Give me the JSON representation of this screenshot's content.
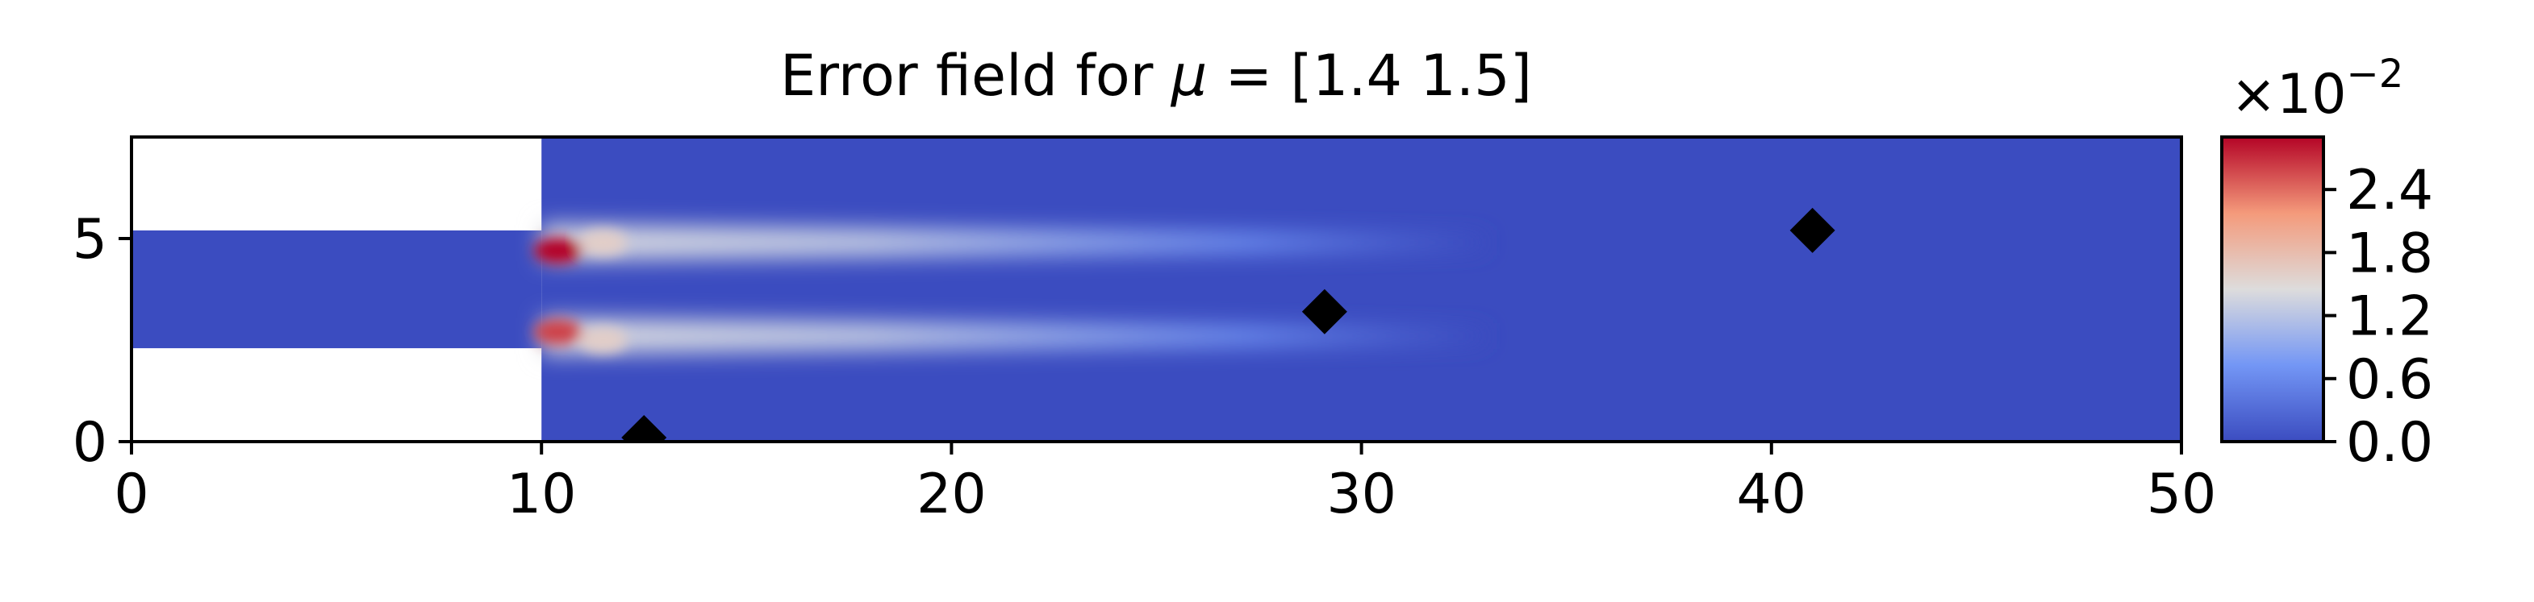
{
  "chart_data": {
    "type": "heatmap",
    "title_prefix": "Error field for ",
    "title_symbol": "μ",
    "title_suffix": " = [1.4 1.5]",
    "xlabel": "",
    "ylabel": "",
    "xlim": [
      0,
      50
    ],
    "ylim": [
      0,
      7.5
    ],
    "x_ticks": [
      {
        "value": 0,
        "label": "0"
      },
      {
        "value": 10,
        "label": "10"
      },
      {
        "value": 20,
        "label": "20"
      },
      {
        "value": 30,
        "label": "30"
      },
      {
        "value": 40,
        "label": "40"
      },
      {
        "value": 50,
        "label": "50"
      }
    ],
    "y_ticks": [
      {
        "value": 0,
        "label": "0"
      },
      {
        "value": 5,
        "label": "5"
      }
    ],
    "domain": {
      "inlet_channel": {
        "x": [
          0,
          10
        ],
        "y": [
          2.3,
          5.2
        ]
      },
      "main_channel": {
        "x": [
          10,
          50
        ],
        "y": [
          0,
          7.5
        ]
      }
    },
    "colormap": "coolwarm",
    "colorbar": {
      "multiplier_base": "×10",
      "multiplier_exp": "−2",
      "range": [
        0.0,
        2.9
      ],
      "ticks": [
        {
          "value": 0.0,
          "label": "0.0"
        },
        {
          "value": 0.6,
          "label": "0.6"
        },
        {
          "value": 1.2,
          "label": "1.2"
        },
        {
          "value": 1.8,
          "label": "1.8"
        },
        {
          "value": 2.4,
          "label": "2.4"
        }
      ]
    },
    "hotspots": [
      {
        "x": 10.4,
        "y": 4.7,
        "value": 2.9
      },
      {
        "x": 10.4,
        "y": 2.7,
        "value": 2.6
      },
      {
        "x": 11.5,
        "y": 4.9,
        "value": 1.6
      },
      {
        "x": 11.5,
        "y": 2.5,
        "value": 1.6
      }
    ],
    "error_bands": [
      {
        "y": 4.9,
        "x_start": 10,
        "x_end": 33,
        "peak_value": 1.4,
        "width": 0.9
      },
      {
        "y": 2.6,
        "x_start": 10,
        "x_end": 33,
        "peak_value": 1.4,
        "width": 0.9
      }
    ],
    "sensor_markers": [
      {
        "x": 12.5,
        "y": 0.1
      },
      {
        "x": 29.1,
        "y": 3.2
      },
      {
        "x": 41.0,
        "y": 5.2
      }
    ],
    "colors": {
      "background": "#3b4cc0",
      "marker": "#000000"
    }
  }
}
